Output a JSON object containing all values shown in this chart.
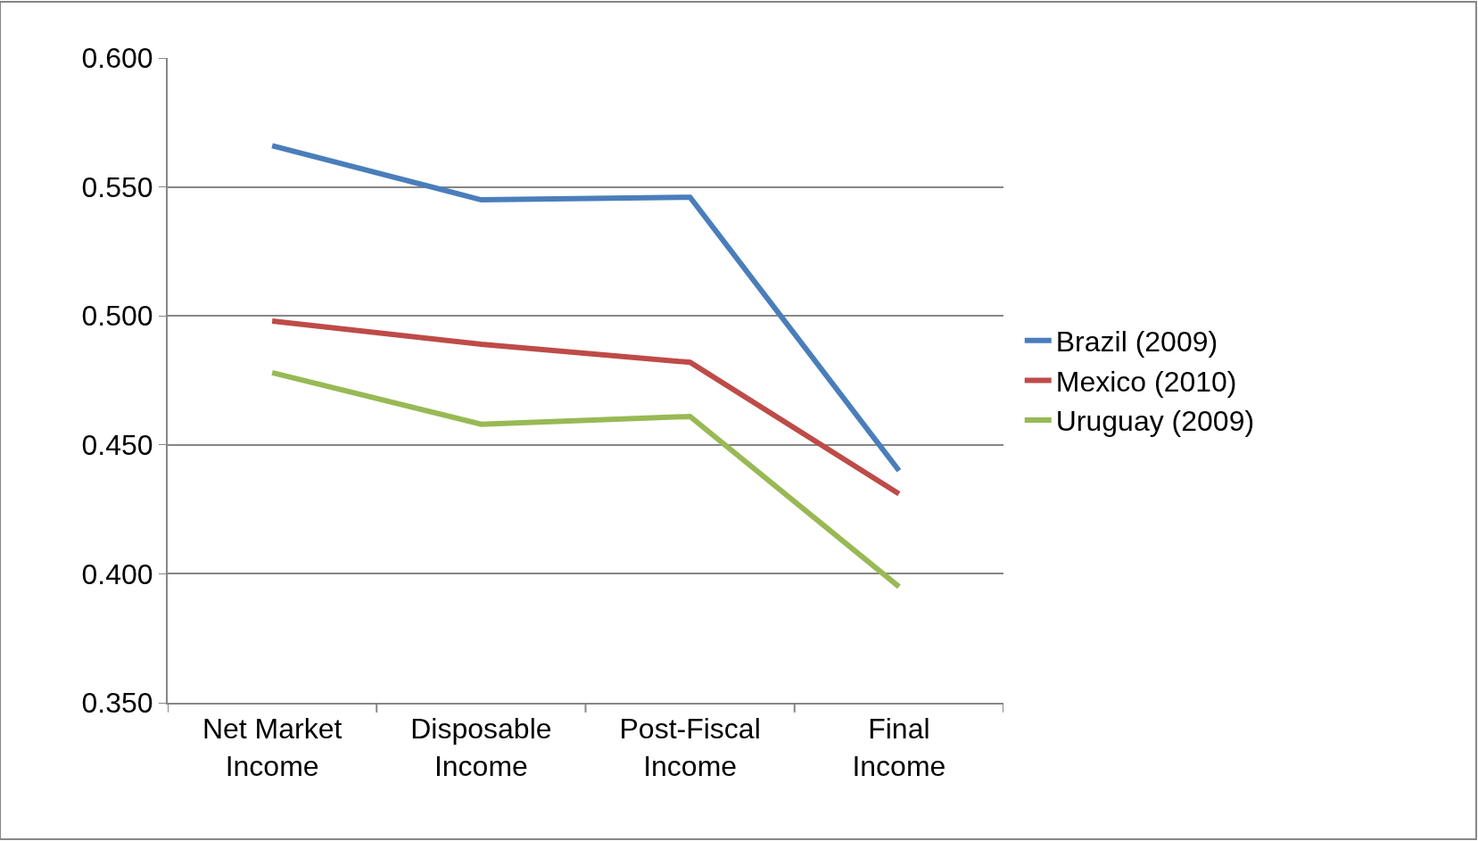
{
  "chart_data": {
    "type": "line",
    "categories": [
      "Net Market Income",
      "Disposable Income",
      "Post-Fiscal Income",
      "Final Income"
    ],
    "series": [
      {
        "name": "Brazil (2009)",
        "color": "#4a7ebb",
        "values": [
          0.566,
          0.545,
          0.546,
          0.44
        ]
      },
      {
        "name": "Mexico (2010)",
        "color": "#be4b48",
        "values": [
          0.498,
          0.489,
          0.482,
          0.431
        ]
      },
      {
        "name": "Uruguay (2009)",
        "color": "#98b954",
        "values": [
          0.478,
          0.458,
          0.461,
          0.395
        ]
      }
    ],
    "ylim": [
      0.35,
      0.6
    ],
    "yticks": [
      {
        "value": 0.35,
        "label": "0.350"
      },
      {
        "value": 0.4,
        "label": "0.400"
      },
      {
        "value": 0.45,
        "label": "0.450"
      },
      {
        "value": 0.5,
        "label": "0.500"
      },
      {
        "value": 0.55,
        "label": "0.550"
      },
      {
        "value": 0.6,
        "label": "0.600"
      }
    ],
    "grid": "y",
    "legend": "right",
    "marker": "none",
    "line_style": "solid"
  }
}
